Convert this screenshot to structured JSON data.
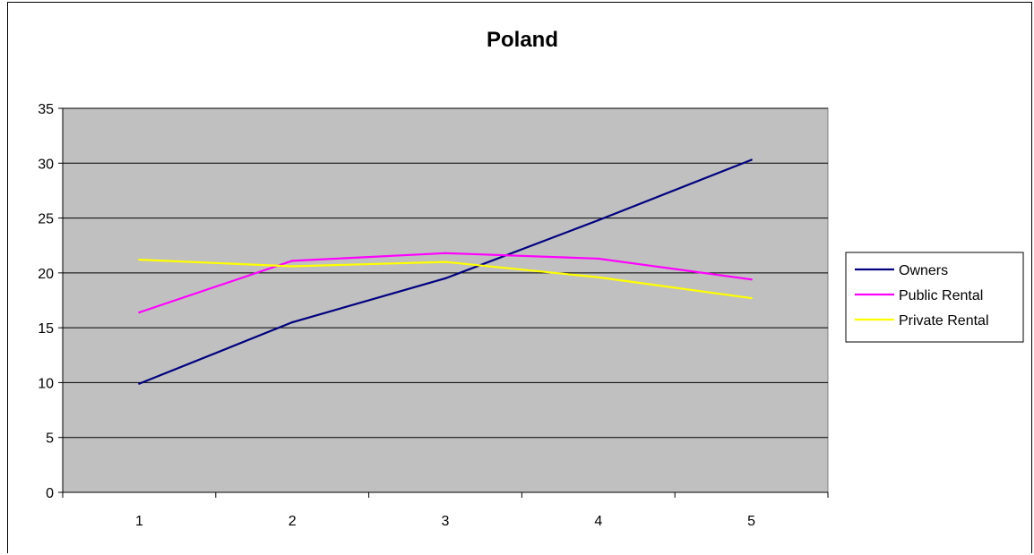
{
  "chart_data": {
    "type": "line",
    "title": "Poland",
    "xlabel": "",
    "ylabel": "",
    "categories": [
      "1",
      "2",
      "3",
      "4",
      "5"
    ],
    "ylim": [
      0,
      35
    ],
    "yticks": [
      "0",
      "5",
      "10",
      "15",
      "20",
      "25",
      "30",
      "35"
    ],
    "grid": true,
    "plot_background": "#c0c0c0",
    "legend_position": "right",
    "series": [
      {
        "name": "Owners",
        "color": "#000080",
        "values": [
          9.9,
          15.5,
          19.5,
          24.8,
          30.3
        ]
      },
      {
        "name": "Public Rental",
        "color": "#ff00ff",
        "values": [
          16.4,
          21.1,
          21.8,
          21.3,
          19.4
        ]
      },
      {
        "name": "Private Rental",
        "color": "#ffff00",
        "values": [
          21.2,
          20.6,
          21.0,
          19.6,
          17.7
        ]
      }
    ]
  }
}
